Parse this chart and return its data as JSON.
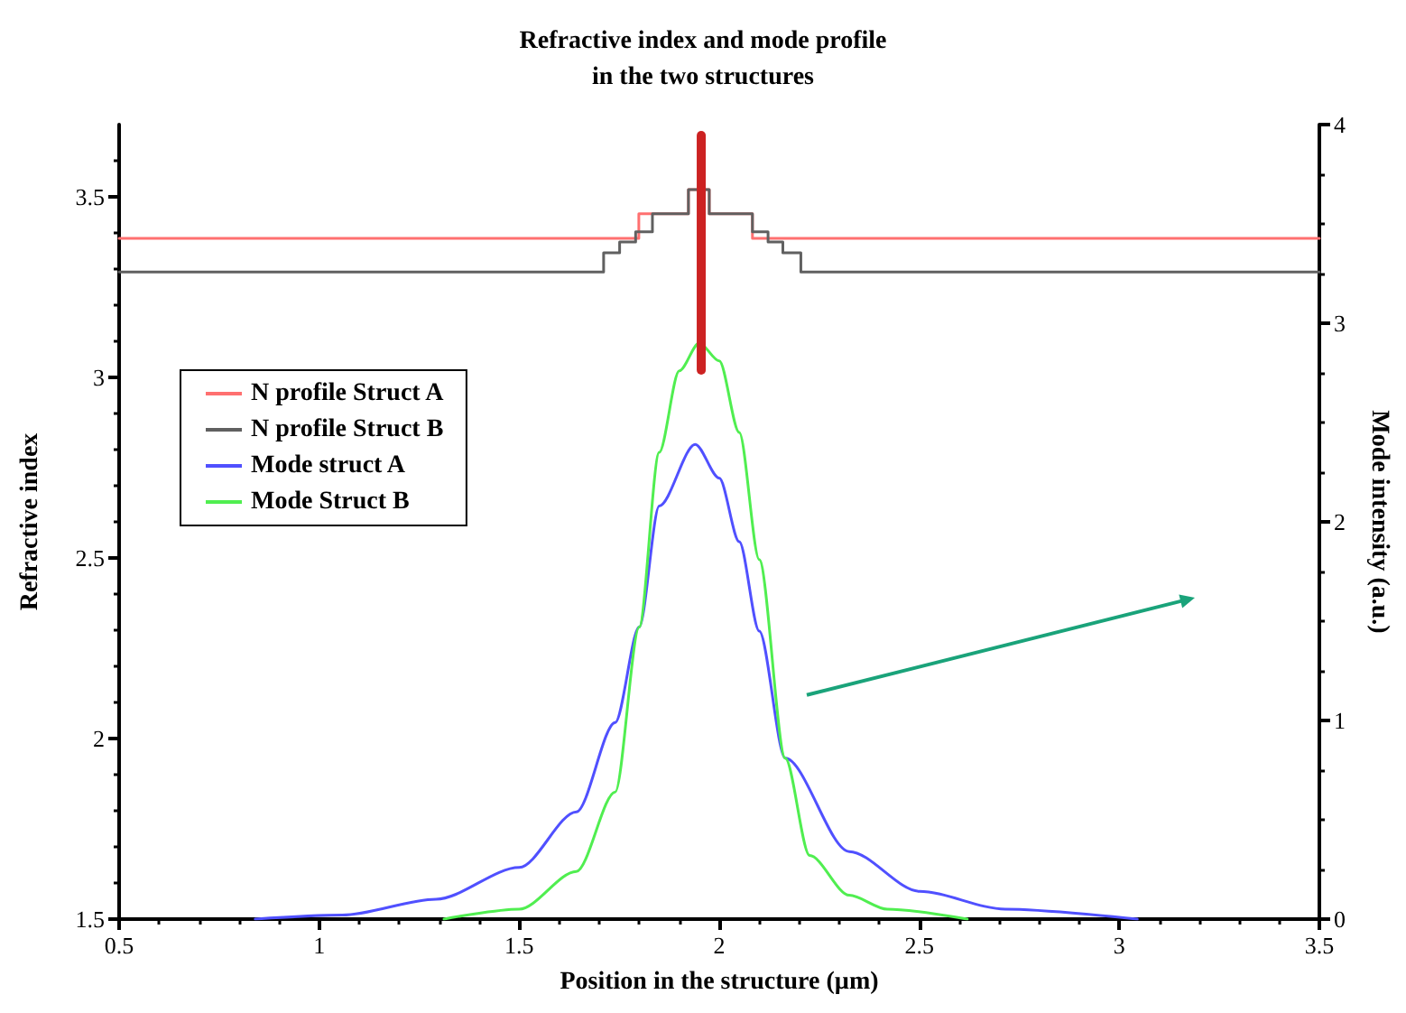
{
  "chart_data": {
    "type": "line",
    "title": "Refractive index and mode profile\nin the two structures",
    "xlabel": "Position in the structure (µm)",
    "ylabel": "Refractive index",
    "y2label": "Mode intensity (a.u.)",
    "xlim": [
      0.5,
      3.5
    ],
    "xticks": [
      0.5,
      1,
      1.5,
      2,
      2.5,
      3,
      3.5
    ],
    "ylim": [
      1.5,
      3.7
    ],
    "yticks": [
      1.5,
      2,
      2.5,
      3,
      3.5
    ],
    "y2lim": [
      0,
      4
    ],
    "y2ticks": [
      0,
      1,
      2,
      3,
      4
    ],
    "grid": false,
    "legend": "left",
    "marker": "none",
    "series": [
      {
        "name": "N profile Struct A",
        "type": "step",
        "color": "#ff7070",
        "x": [
          0.5,
          1.799,
          1.923,
          1.975,
          2.083,
          3.5
        ],
        "values": [
          3.385,
          3.453,
          3.52,
          3.453,
          3.385,
          3.385
        ]
      },
      {
        "name": "N profile Struct B",
        "type": "step",
        "color": "#606060",
        "x": [
          0.5,
          1.711,
          1.751,
          1.791,
          1.833,
          1.923,
          1.975,
          2.083,
          2.122,
          2.159,
          2.204,
          3.5
        ],
        "values": [
          3.292,
          3.345,
          3.375,
          3.403,
          3.453,
          3.52,
          3.453,
          3.403,
          3.375,
          3.345,
          3.292,
          3.292
        ]
      },
      {
        "name": "Mode struct A",
        "axis": "y2",
        "color": "#5050ff",
        "x": [
          0.84,
          1.058,
          1.292,
          1.5,
          1.643,
          1.74,
          1.8,
          1.85,
          1.94,
          2.0,
          2.05,
          2.1,
          2.165,
          2.325,
          2.5,
          2.715,
          3.045
        ],
        "values": [
          0,
          0.02,
          0.1,
          0.26,
          0.54,
          0.99,
          1.47,
          2.08,
          2.39,
          2.22,
          1.9,
          1.45,
          0.81,
          0.34,
          0.14,
          0.05,
          0
        ]
      },
      {
        "name": "Mode Struct B",
        "axis": "y2",
        "color": "#50ee50",
        "x": [
          1.312,
          1.5,
          1.643,
          1.74,
          1.8,
          1.85,
          1.9,
          1.95,
          2.0,
          2.05,
          2.1,
          2.165,
          2.226,
          2.325,
          2.42,
          2.62
        ],
        "values": [
          0,
          0.05,
          0.24,
          0.64,
          1.47,
          2.35,
          2.76,
          2.9,
          2.81,
          2.45,
          1.81,
          0.81,
          0.32,
          0.12,
          0.05,
          0
        ]
      },
      {
        "color": "#cc2222",
        "x": [
          1.955,
          1.955
        ],
        "values": [
          3.02,
          3.67
        ]
      }
    ]
  }
}
